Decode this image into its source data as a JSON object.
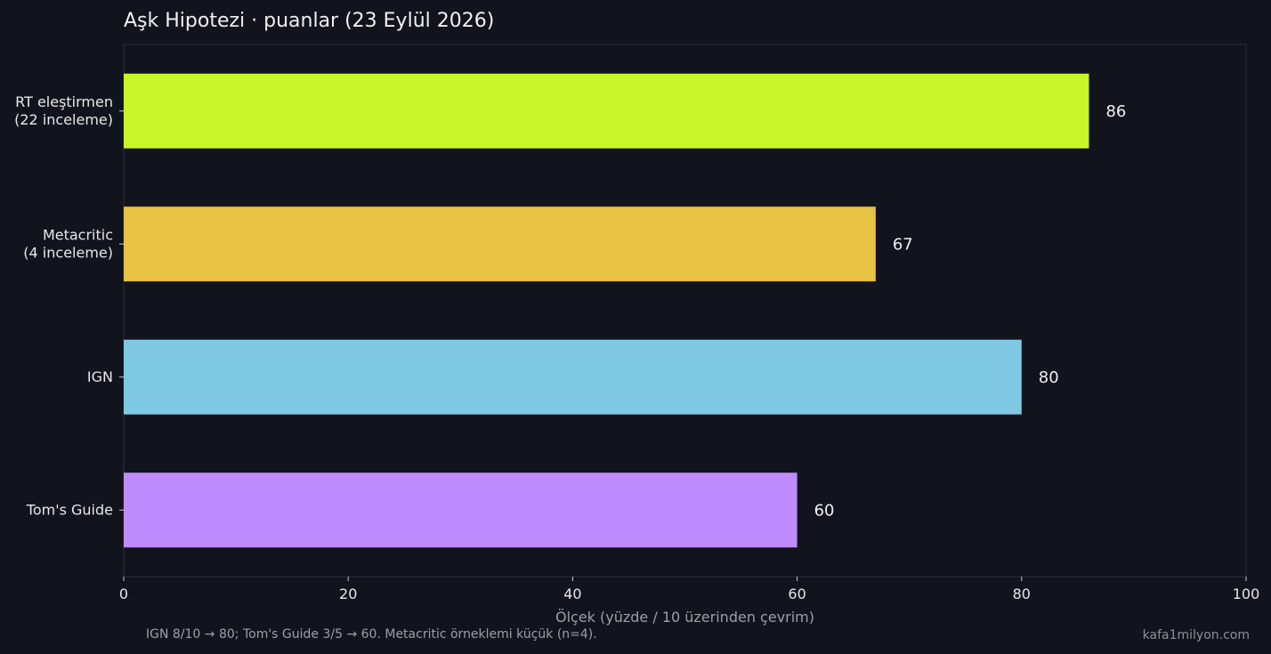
{
  "chart_data": {
    "type": "bar",
    "orientation": "horizontal",
    "title": "Aşk Hipotezi · puanlar (23 Eylül 2026)",
    "xlabel": "Ölçek (yüzde / 10 üzerinden çevrim)",
    "ylabel": "",
    "xlim": [
      0,
      100
    ],
    "xticks": [
      0,
      20,
      40,
      60,
      80,
      100
    ],
    "grid": false,
    "categories": [
      [
        "RT eleştirmen",
        "(22 inceleme)"
      ],
      [
        "Metacritic",
        "(4 inceleme)"
      ],
      [
        "IGN"
      ],
      [
        "Tom's Guide"
      ]
    ],
    "values": [
      86,
      67,
      80,
      60
    ],
    "colors": [
      "#c8f52a",
      "#e8c244",
      "#7ec8e3",
      "#bf8cff"
    ],
    "data_labels": [
      "86",
      "67",
      "80",
      "60"
    ]
  },
  "footnote": "IGN 8/10 → 80; Tom's Guide 3/5 → 60. Metacritic örneklemi küçük (n=4).",
  "credit": "kafa1milyon.com",
  "colors": {
    "background": "#11141c",
    "text": "#e8e8ea",
    "muted_text": "#9aa0aa",
    "axis": "#3a3f4a"
  }
}
